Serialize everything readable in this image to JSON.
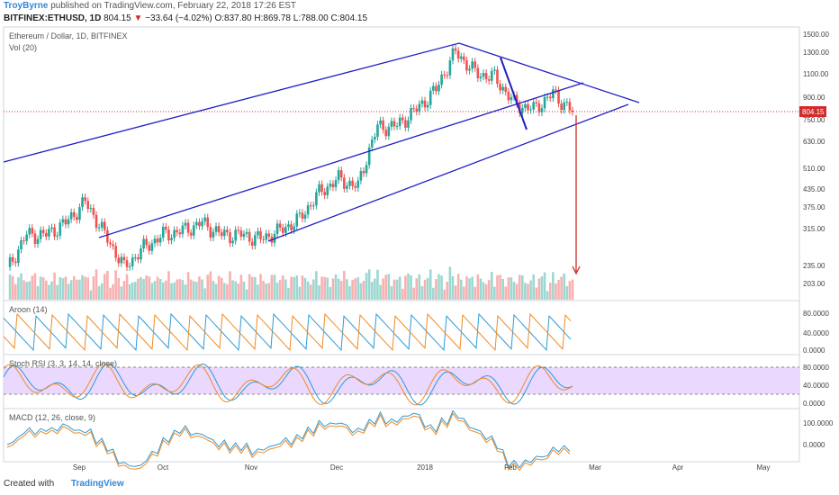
{
  "header": {
    "author": "TroyByrne",
    "published": "published on TradingView.com, February 22, 2018 17:26 EST",
    "symbol": "BITFINEX:ETHUSD, 1D",
    "last": "804.15",
    "change": "−33.64 (−4.02%)",
    "ohlc": "O:837.80 H:869.78 L:788.00 C:804.15"
  },
  "chart_data": [
    {
      "type": "candlestick",
      "title": "Ethereum / Dollar, 1D, BITFINEX",
      "volume_label": "Vol (20)",
      "scale": "log",
      "y_ticks": [
        "1500.00",
        "1300.00",
        "1100.00",
        "900.00",
        "750.00",
        "630.00",
        "510.00",
        "435.00",
        "375.00",
        "315.00",
        "235.00",
        "203.00"
      ],
      "last_price": "804.15",
      "x_ticks": [
        "Sep",
        "Oct",
        "Nov",
        "Dec",
        "2018",
        "Feb",
        "Mar",
        "Apr",
        "May"
      ],
      "series": [
        {
          "x": [
            "Aug 03",
            "Aug 10",
            "Aug 17",
            "Aug 24",
            "Aug 31",
            "Sep 07",
            "Sep 14",
            "Sep 21",
            "Sep 28",
            "Oct 05",
            "Oct 12",
            "Oct 19",
            "Oct 26",
            "Nov 02",
            "Nov 09",
            "Nov 16",
            "Nov 23",
            "Nov 30",
            "Dec 07",
            "Dec 14",
            "Dec 21",
            "Dec 28",
            "Jan 04",
            "Jan 11",
            "Jan 18",
            "Jan 25",
            "Feb 01",
            "Feb 08",
            "Feb 15",
            "Feb 22"
          ],
          "close": [
            225,
            300,
            300,
            330,
            390,
            300,
            230,
            270,
            300,
            310,
            330,
            300,
            300,
            290,
            310,
            340,
            420,
            470,
            440,
            710,
            720,
            820,
            960,
            1300,
            1100,
            1060,
            860,
            820,
            930,
            804
          ]
        }
      ]
    },
    {
      "type": "line",
      "title": "Aroon (14)",
      "y_ticks": [
        "80.0000",
        "40.0000",
        "0.0000"
      ],
      "series": [
        {
          "color": "#2e9ad6"
        },
        {
          "color": "#f08a24"
        }
      ]
    },
    {
      "type": "line",
      "title": "Stoch RSI (3, 3, 14, 14, close)",
      "y_ticks": [
        "80.0000",
        "40.0000",
        "0.0000"
      ],
      "series": [
        {
          "color": "#2e9ad6"
        },
        {
          "color": "#f08a24"
        }
      ]
    },
    {
      "type": "line",
      "title": "MACD (12, 26, close, 9)",
      "y_ticks": [
        "100.0000",
        "0.0000"
      ],
      "series": [
        {
          "color": "#2e9ad6"
        },
        {
          "color": "#f08a24"
        }
      ]
    }
  ],
  "colors": {
    "up": "#26a69a",
    "down": "#ef5350",
    "trend": "#1f1fc7",
    "target": "#d12c2c",
    "stoch_band": "#e1c8ff"
  },
  "footer": {
    "created_with": "Created with",
    "brand": "TradingView"
  }
}
